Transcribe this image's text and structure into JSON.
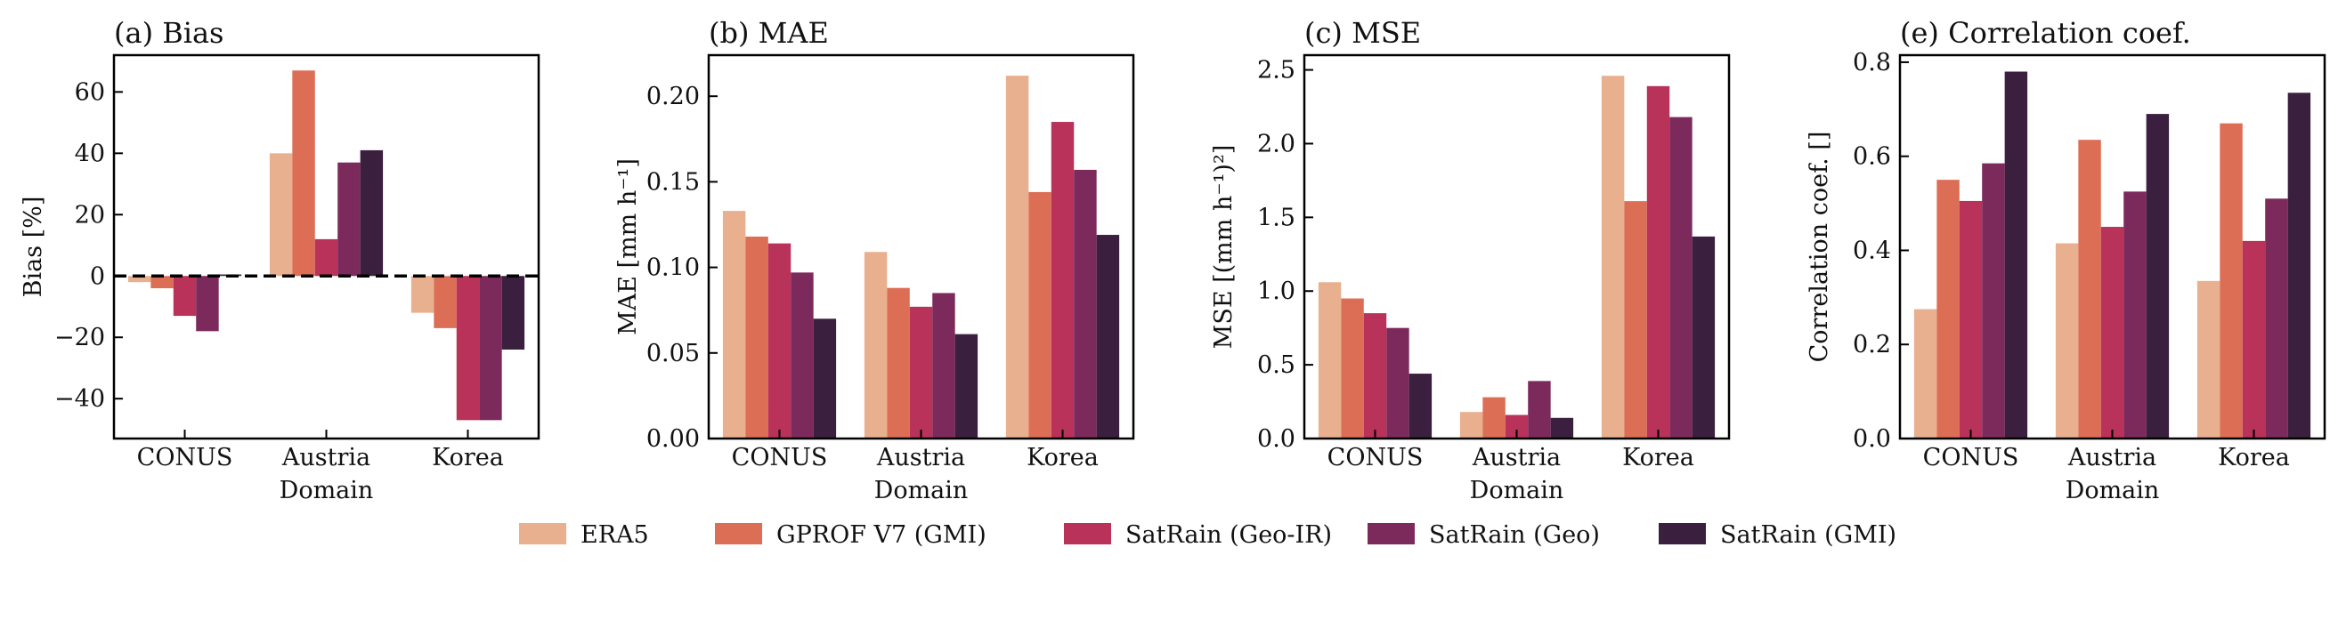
{
  "chart_data": [
    {
      "type": "bar",
      "title": "(a) Bias",
      "xlabel": "Domain",
      "ylabel": "Bias [%]",
      "categories": [
        "CONUS",
        "Austria",
        "Korea"
      ],
      "ylim": [
        -53,
        72
      ],
      "yticks": [
        -40,
        -20,
        0,
        20,
        40,
        60
      ],
      "ytick_labels": [
        "−40",
        "−20",
        "0",
        "20",
        "40",
        "60"
      ],
      "zero_line": true,
      "series": [
        {
          "name": "ERA5",
          "values": [
            -2,
            40,
            -12
          ]
        },
        {
          "name": "GPROF V7 (GMI)",
          "values": [
            -4,
            67,
            -17
          ]
        },
        {
          "name": "SatRain (Geo-IR)",
          "values": [
            -13,
            12,
            -47
          ]
        },
        {
          "name": "SatRain (Geo)",
          "values": [
            -18,
            37,
            -47
          ]
        },
        {
          "name": "SatRain (GMI)",
          "values": [
            0.5,
            41,
            -24
          ]
        }
      ]
    },
    {
      "type": "bar",
      "title": "(b) MAE",
      "xlabel": "Domain",
      "ylabel": "MAE [mm h⁻¹]",
      "categories": [
        "CONUS",
        "Austria",
        "Korea"
      ],
      "ylim": [
        0,
        0.224
      ],
      "yticks": [
        0,
        0.05,
        0.1,
        0.15,
        0.2
      ],
      "ytick_labels": [
        "0.00",
        "0.05",
        "0.10",
        "0.15",
        "0.20"
      ],
      "series": [
        {
          "name": "ERA5",
          "values": [
            0.133,
            0.109,
            0.212
          ]
        },
        {
          "name": "GPROF V7 (GMI)",
          "values": [
            0.118,
            0.088,
            0.144
          ]
        },
        {
          "name": "SatRain (Geo-IR)",
          "values": [
            0.114,
            0.077,
            0.185
          ]
        },
        {
          "name": "SatRain (Geo)",
          "values": [
            0.097,
            0.085,
            0.157
          ]
        },
        {
          "name": "SatRain (GMI)",
          "values": [
            0.07,
            0.061,
            0.119
          ]
        }
      ]
    },
    {
      "type": "bar",
      "title": "(c) MSE",
      "xlabel": "Domain",
      "ylabel": "MSE [(mm h⁻¹)²]",
      "categories": [
        "CONUS",
        "Austria",
        "Korea"
      ],
      "ylim": [
        0,
        2.6
      ],
      "yticks": [
        0,
        0.5,
        1.0,
        1.5,
        2.0,
        2.5
      ],
      "ytick_labels": [
        "0.0",
        "0.5",
        "1.0",
        "1.5",
        "2.0",
        "2.5"
      ],
      "series": [
        {
          "name": "ERA5",
          "values": [
            1.06,
            0.18,
            2.46
          ]
        },
        {
          "name": "GPROF V7 (GMI)",
          "values": [
            0.95,
            0.28,
            1.61
          ]
        },
        {
          "name": "SatRain (Geo-IR)",
          "values": [
            0.85,
            0.16,
            2.39
          ]
        },
        {
          "name": "SatRain (Geo)",
          "values": [
            0.75,
            0.39,
            2.18
          ]
        },
        {
          "name": "SatRain (GMI)",
          "values": [
            0.44,
            0.14,
            1.37
          ]
        }
      ]
    },
    {
      "type": "bar",
      "title": "(e) Correlation coef.",
      "xlabel": "Domain",
      "ylabel": "Correlation coef. []",
      "categories": [
        "CONUS",
        "Austria",
        "Korea"
      ],
      "ylim": [
        0,
        0.815
      ],
      "yticks": [
        0,
        0.2,
        0.4,
        0.6,
        0.8
      ],
      "ytick_labels": [
        "0.0",
        "0.2",
        "0.4",
        "0.6",
        "0.8"
      ],
      "series": [
        {
          "name": "ERA5",
          "values": [
            0.275,
            0.415,
            0.335
          ]
        },
        {
          "name": "GPROF V7 (GMI)",
          "values": [
            0.55,
            0.635,
            0.67
          ]
        },
        {
          "name": "SatRain (Geo-IR)",
          "values": [
            0.505,
            0.45,
            0.42
          ]
        },
        {
          "name": "SatRain (Geo)",
          "values": [
            0.585,
            0.525,
            0.51
          ]
        },
        {
          "name": "SatRain (GMI)",
          "values": [
            0.78,
            0.69,
            0.735
          ]
        }
      ]
    }
  ],
  "legend": {
    "placement": "bottom-center",
    "items": [
      {
        "label": "ERA5",
        "color": "#e9b08f"
      },
      {
        "label": "GPROF V7 (GMI)",
        "color": "#dc6e55"
      },
      {
        "label": "SatRain (Geo-IR)",
        "color": "#b8325a"
      },
      {
        "label": "SatRain (Geo)",
        "color": "#7c2a5c"
      },
      {
        "label": "SatRain (GMI)",
        "color": "#3a1f3e"
      }
    ]
  }
}
